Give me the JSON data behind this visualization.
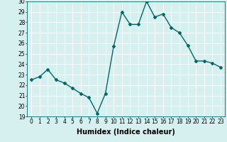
{
  "x": [
    0,
    1,
    2,
    3,
    4,
    5,
    6,
    7,
    8,
    9,
    10,
    11,
    12,
    13,
    14,
    15,
    16,
    17,
    18,
    19,
    20,
    21,
    22,
    23
  ],
  "y": [
    22.5,
    22.8,
    23.5,
    22.5,
    22.2,
    21.7,
    21.2,
    20.8,
    19.3,
    21.2,
    25.7,
    29.0,
    27.8,
    27.8,
    30.0,
    28.5,
    28.8,
    27.5,
    27.0,
    25.8,
    24.3,
    24.3,
    24.1,
    23.7
  ],
  "xlabel": "Humidex (Indice chaleur)",
  "ylabel": "",
  "ylim": [
    19,
    30
  ],
  "xlim": [
    -0.5,
    23.5
  ],
  "yticks": [
    19,
    20,
    21,
    22,
    23,
    24,
    25,
    26,
    27,
    28,
    29,
    30
  ],
  "xticks": [
    0,
    1,
    2,
    3,
    4,
    5,
    6,
    7,
    8,
    9,
    10,
    11,
    12,
    13,
    14,
    15,
    16,
    17,
    18,
    19,
    20,
    21,
    22,
    23
  ],
  "line_color": "#006666",
  "marker": "D",
  "marker_size": 2.0,
  "bg_color": "#d6f0f0",
  "grid_color": "#ffffff",
  "xlabel_fontsize": 7,
  "tick_fontsize": 5.5,
  "line_width": 1.0
}
